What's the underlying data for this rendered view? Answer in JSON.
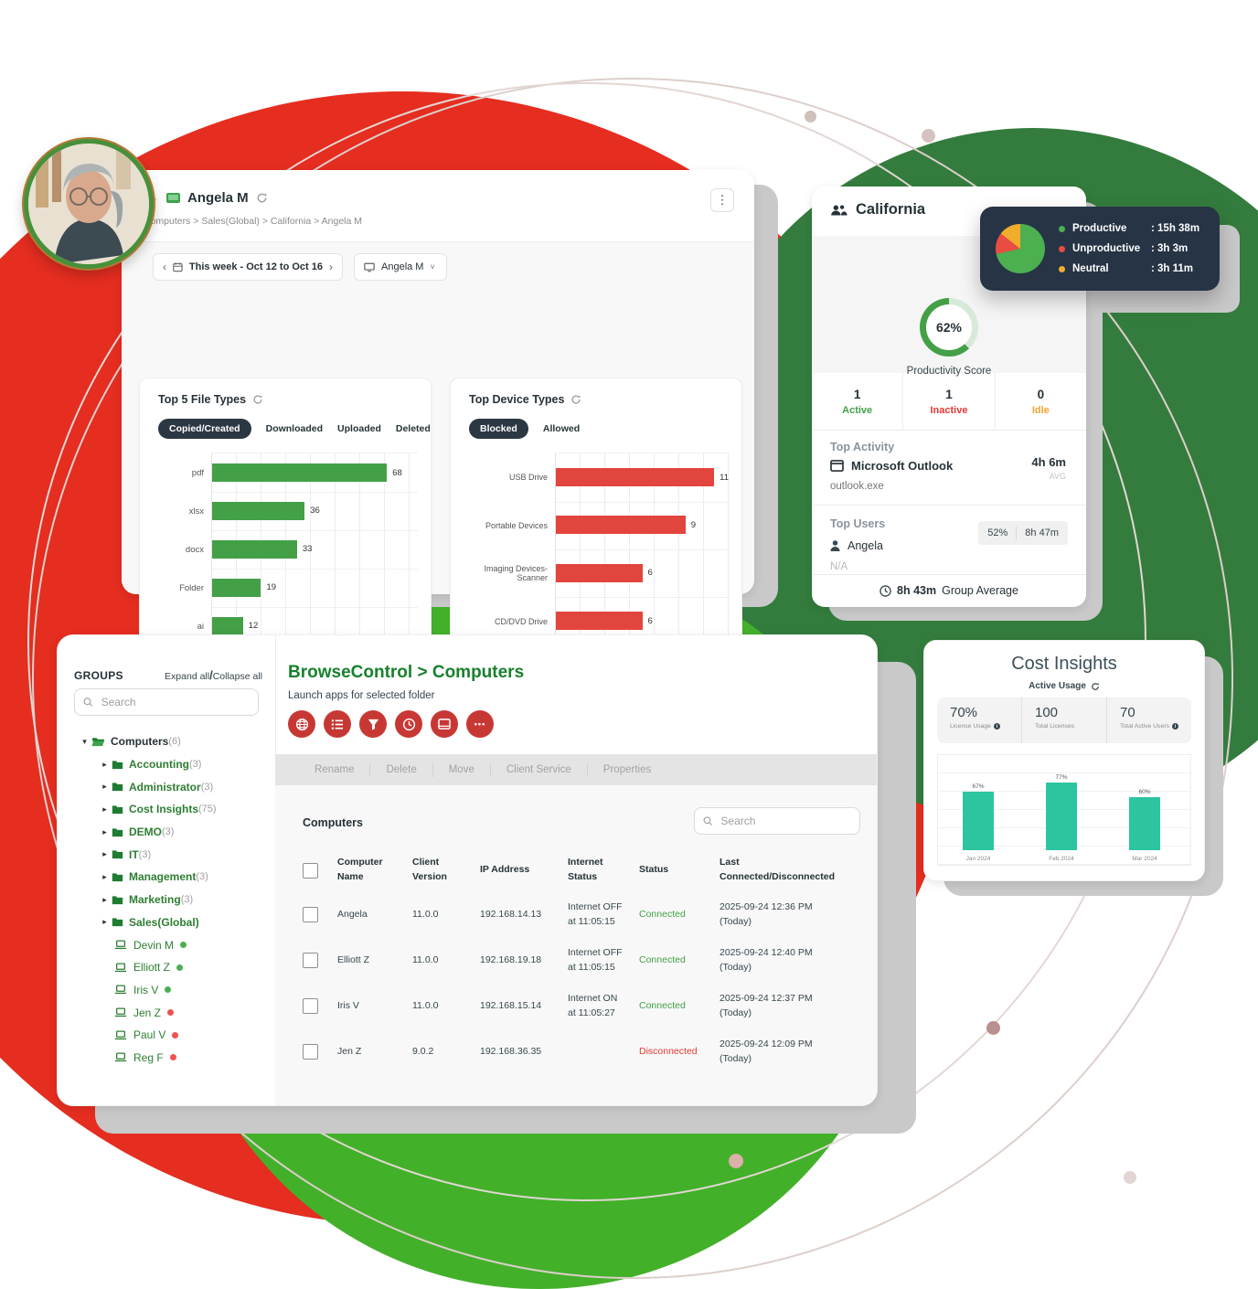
{
  "icons": {
    "back_arrow": "←",
    "kebab": "⋮",
    "tree_expanded": "▾",
    "tree_collapsed": "▸",
    "chevron_left": "‹",
    "chevron_right": "›",
    "caret_down": "˅",
    "more_dots": "•••",
    "slash": "/",
    "info": "i"
  },
  "colors": {
    "brand_green": "#17812c",
    "bar_green": "#43a047",
    "bar_red": "#e2453d",
    "icon_red": "#c73835",
    "teal": "#2cc5a0",
    "navy": "#263238",
    "tooltip_bg": "#263445",
    "idle_orange": "#f0a431",
    "status_green": "#43a047",
    "status_red": "#e53935"
  },
  "activity_panel": {
    "title": "Angela M",
    "breadcrumb": "Computers > Sales(Global) > California > Angela M",
    "date_range": "This week - Oct 12 to Oct 16",
    "device_filter": "Angela M",
    "file_types": {
      "title": "Top 5 File Types",
      "tabs": [
        "Copied/Created",
        "Downloaded",
        "Uploaded",
        "Deleted"
      ],
      "active_tab": "Copied/Created",
      "chart": {
        "type": "bar",
        "orientation": "horizontal",
        "categories": [
          "pdf",
          "xlsx",
          "docx",
          "Folder",
          "ai"
        ],
        "values": [
          68,
          36,
          33,
          19,
          12
        ],
        "xmax": 80,
        "color": "#43a047"
      }
    },
    "device_types": {
      "title": "Top Device Types",
      "tabs": [
        "Blocked",
        "Allowed"
      ],
      "active_tab": "Blocked",
      "chart": {
        "type": "bar",
        "orientation": "horizontal",
        "categories": [
          "USB Drive",
          "Portable Devices",
          "Imaging Devices-Scanner",
          "CD/DVD Drive"
        ],
        "values": [
          11,
          9,
          6,
          6
        ],
        "xmax": 12,
        "color": "#e2453d"
      }
    }
  },
  "group_card": {
    "title": "California",
    "score": "62%",
    "score_value": 62,
    "score_label": "Productivity Score",
    "tooltip": {
      "pie": {
        "type": "pie",
        "segments": [
          {
            "label": "Productive",
            "pct": 71.5,
            "color": "#4caf50"
          },
          {
            "label": "Unproductive",
            "pct": 14.0,
            "color": "#e84c42"
          },
          {
            "label": "Neutral",
            "pct": 14.5,
            "color": "#f0ad2c"
          }
        ]
      },
      "legend": [
        {
          "label": "Productive",
          "value": ": 15h 38m",
          "color": "#4caf50"
        },
        {
          "label": "Unproductive",
          "value": ": 3h 3m",
          "color": "#e84c42"
        },
        {
          "label": "Neutral",
          "value": ": 3h 11m",
          "color": "#f0ad2c"
        }
      ]
    },
    "stats": [
      {
        "value": "1",
        "label": "Active",
        "color": "#43a047"
      },
      {
        "value": "1",
        "label": "Inactive",
        "color": "#e53935"
      },
      {
        "value": "0",
        "label": "Idle",
        "color": "#f0a431"
      }
    ],
    "top_activity": {
      "heading": "Top Activity",
      "app": "Microsoft Outlook",
      "process": "outlook.exe",
      "duration": "4h 6m",
      "duration_label": "AVG"
    },
    "top_users": {
      "heading": "Top Users",
      "user": "Angela",
      "percent": "52%",
      "time": "8h 47m",
      "empty": "N/A"
    },
    "footer_time": "8h 43m",
    "footer_label": "Group Average"
  },
  "browse_panel": {
    "sidebar": {
      "heading": "GROUPS",
      "expand": "Expand all",
      "collapse": "Collapse all",
      "search_placeholder": "Search",
      "root": {
        "label": "Computers",
        "count": "(6)"
      },
      "groups": [
        {
          "label": "Accounting",
          "count": "(3)"
        },
        {
          "label": "Administrator",
          "count": "(3)"
        },
        {
          "label": "Cost Insights",
          "count": "(75)"
        },
        {
          "label": "DEMO",
          "count": "(3)"
        },
        {
          "label": "IT",
          "count": "(3)"
        },
        {
          "label": "Management",
          "count": "(3)"
        },
        {
          "label": "Marketing",
          "count": "(3)"
        },
        {
          "label": "Sales(Global)",
          "count": ""
        }
      ],
      "computers": [
        {
          "label": "Devin M",
          "status": "online"
        },
        {
          "label": "Elliott Z",
          "status": "online"
        },
        {
          "label": "Iris V",
          "status": "online"
        },
        {
          "label": "Jen Z",
          "status": "offline"
        },
        {
          "label": "Paul V",
          "status": "offline"
        },
        {
          "label": "Reg F",
          "status": "offline"
        }
      ]
    },
    "header": {
      "app": "BrowseControl",
      "separator": ">",
      "page": "Computers",
      "subtitle": "Launch apps for selected folder"
    },
    "toolbar": [
      "Rename",
      "Delete",
      "Move",
      "Client Service",
      "Properties"
    ],
    "table": {
      "title": "Computers",
      "search_placeholder": "Search",
      "columns": {
        "name_l1": "Computer",
        "name_l2": "Name",
        "ver_l1": "Client",
        "ver_l2": "Version",
        "ip": "IP Address",
        "net_l1": "Internet",
        "net_l2": "Status",
        "status": "Status",
        "last_l1": "Last",
        "last_l2": "Connected/Disconnected"
      },
      "rows": [
        {
          "name": "Angela",
          "version": "11.0.0",
          "ip": "192.168.14.13",
          "internet": "Internet OFF at 11:05:15",
          "status": "Connected",
          "status_type": "connected",
          "last": "2025-09-24 12:36 PM (Today)"
        },
        {
          "name": "Elliott Z",
          "version": "11.0.0",
          "ip": "192.168.19.18",
          "internet": "Internet OFF at 11:05:15",
          "status": "Connected",
          "status_type": "connected",
          "last": "2025-09-24 12:40 PM (Today)"
        },
        {
          "name": "Iris V",
          "version": "11.0.0",
          "ip": "192.168.15.14",
          "internet": "Internet ON at 11:05:27",
          "status": "Connected",
          "status_type": "connected",
          "last": "2025-09-24 12:37 PM (Today)"
        },
        {
          "name": "Jen Z",
          "version": "9.0.2",
          "ip": "192.168.36.35",
          "internet": "",
          "status": "Disconnected",
          "status_type": "disconnected",
          "last": "2025-09-24 12:09 PM (Today)"
        }
      ]
    }
  },
  "cost_card": {
    "title": "Cost Insights",
    "subtitle": "Active Usage",
    "stats": [
      {
        "value": "70%",
        "label": "License Usage"
      },
      {
        "value": "100",
        "label": "Total Licenses"
      },
      {
        "value": "70",
        "label": "Total Active Users"
      }
    ],
    "chart": {
      "type": "bar",
      "categories": [
        "Jan 2024",
        "Feb 2024",
        "Mar 2024"
      ],
      "values": [
        67,
        77,
        60
      ],
      "value_labels": [
        "67%",
        "77%",
        "60%"
      ],
      "ymax": 100,
      "color": "#2cc5a0"
    }
  }
}
